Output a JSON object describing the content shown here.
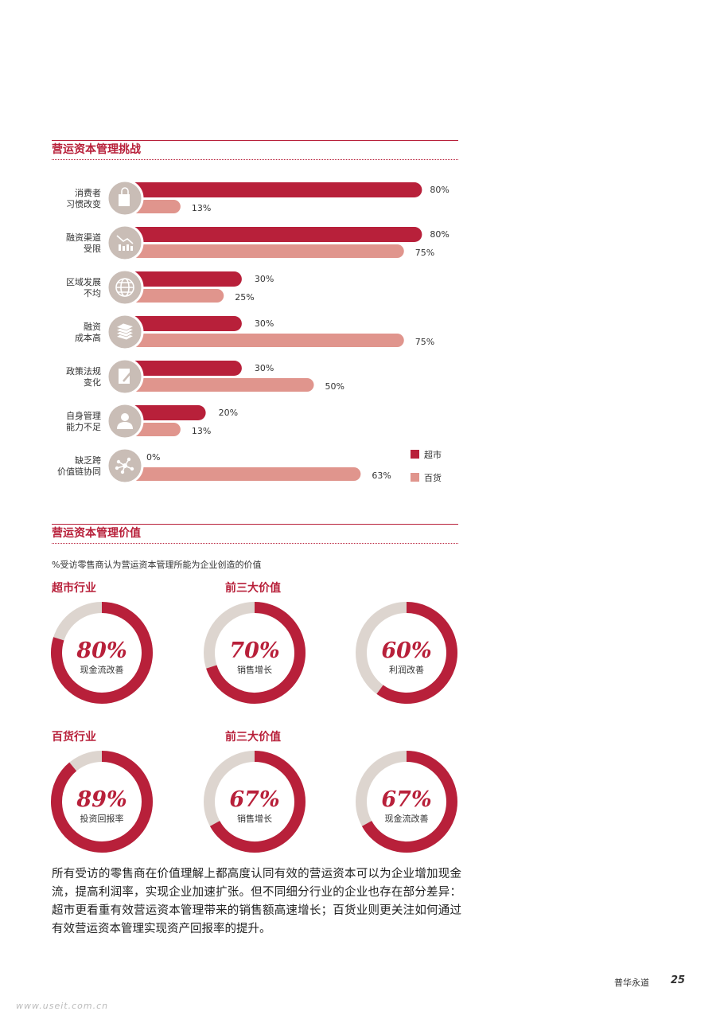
{
  "section1": {
    "title": "营运资本管理挑战"
  },
  "chart_data": [
    {
      "type": "bar",
      "categories": [
        "消费者习惯改变",
        "融资渠道受限",
        "区域发展不均",
        "融资成本高",
        "政策法规变化",
        "自身管理能力不足",
        "缺乏跨价值链协同"
      ],
      "category_lines": [
        [
          "消费者",
          "习惯改变"
        ],
        [
          "融资渠道",
          "受限"
        ],
        [
          "区域发展",
          "不均"
        ],
        [
          "融资",
          "成本高"
        ],
        [
          "政策法规",
          "变化"
        ],
        [
          "自身管理",
          "能力不足"
        ],
        [
          "缺乏跨",
          "价值链协同"
        ]
      ],
      "icons": [
        "shopping-bag-icon",
        "declining-chart-icon",
        "globe-icon",
        "money-stack-icon",
        "document-pen-icon",
        "person-icon",
        "network-icon"
      ],
      "series": [
        {
          "name": "超市",
          "color": "#b8203a",
          "values": [
            80,
            80,
            30,
            30,
            30,
            20,
            0
          ]
        },
        {
          "name": "百货",
          "color": "#e0958d",
          "values": [
            13,
            75,
            25,
            75,
            50,
            13,
            63
          ]
        }
      ],
      "value_suffix": "%",
      "xlim": [
        0,
        100
      ],
      "legend_position": "right"
    },
    {
      "type": "pie",
      "title": "超市行业",
      "subtitle_right": "前三大价值",
      "slices": [
        {
          "label": "现金流改善",
          "value": 80
        },
        {
          "label": "销售增长",
          "value": 70
        },
        {
          "label": "利润改善",
          "value": 60
        }
      ]
    },
    {
      "type": "pie",
      "title": "百货行业",
      "subtitle_right": "前三大价值",
      "slices": [
        {
          "label": "投资回报率",
          "value": 89
        },
        {
          "label": "销售增长",
          "value": 67
        },
        {
          "label": "现金流改善",
          "value": 67
        }
      ]
    }
  ],
  "section2": {
    "title": "营运资本管理价值",
    "subtitle": "%受访零售商认为营运资本管理所能为企业创造的价值"
  },
  "groups": {
    "supermarket": {
      "title": "超市行业",
      "top3": "前三大价值"
    },
    "department": {
      "title": "百货行业",
      "top3": "前三大价值"
    }
  },
  "colors": {
    "accent": "#b8203a",
    "secondary": "#e0958d",
    "donut_track": "#ddd5cf",
    "icon_bg": "#c9bdb6"
  },
  "body_text": "所有受访的零售商在价值理解上都高度认同有效的营运资本可以为企业增加现金流，提高利润率，实现企业加速扩张。但不同细分行业的企业也存在部分差异：超市更看重有效营运资本管理带来的销售额高速增长；百货业则更关注如何通过有效营运资本管理实现资产回报率的提升。",
  "footer": {
    "brand": "普华永道",
    "page": "25"
  },
  "watermark": "www.useit.com.cn"
}
